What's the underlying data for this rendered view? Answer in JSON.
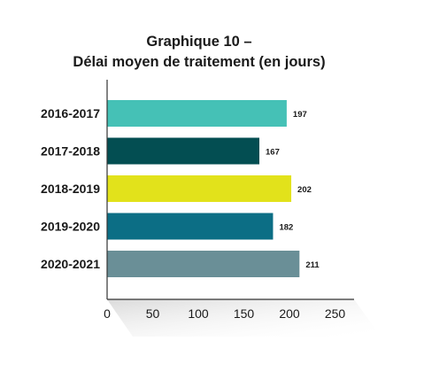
{
  "chart_data": {
    "type": "bar",
    "orientation": "horizontal",
    "title_lines": [
      "Graphique 10 –",
      "Délai moyen de traitement (en jours)"
    ],
    "categories": [
      "2016-2017",
      "2017-2018",
      "2018-2019",
      "2019-2020",
      "2020-2021"
    ],
    "values": [
      197,
      167,
      202,
      182,
      211
    ],
    "colors": [
      "#45c1b6",
      "#034e52",
      "#e2e21b",
      "#0c6e85",
      "#6a8f97"
    ],
    "xlabel": "",
    "ylabel": "",
    "xlim": [
      0,
      250
    ],
    "xticks": [
      0,
      50,
      100,
      150,
      200,
      250
    ],
    "grid": false,
    "legend": "none"
  }
}
